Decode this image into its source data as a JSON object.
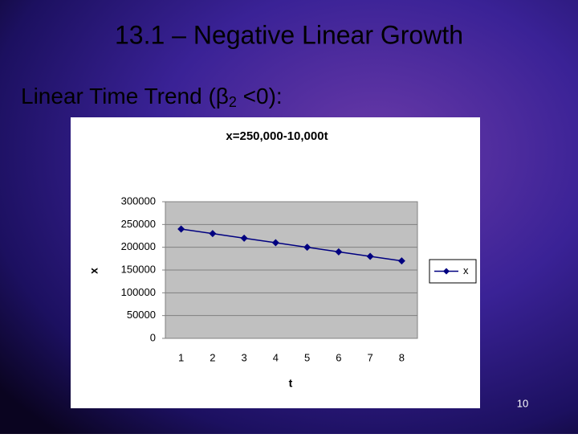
{
  "slide": {
    "title": "13.1 – Negative Linear Growth",
    "subtitle_parts": [
      "Linear Time Trend (β",
      "2",
      " <0):"
    ],
    "page_number": "10"
  },
  "chart_data": {
    "type": "line",
    "title": "x=250,000-10,000t",
    "x_label": "t",
    "y_label": "x",
    "categories": [
      "1",
      "2",
      "3",
      "4",
      "5",
      "6",
      "7",
      "8"
    ],
    "series": [
      {
        "name": "x",
        "color": "#000080",
        "values": [
          240000,
          230000,
          220000,
          210000,
          200000,
          190000,
          180000,
          170000
        ]
      }
    ],
    "ylim": [
      0,
      300000
    ],
    "yticks": [
      0,
      50000,
      100000,
      150000,
      200000,
      250000,
      300000
    ],
    "grid": true,
    "legend": "right",
    "plot_background": "#c0c0c0"
  }
}
